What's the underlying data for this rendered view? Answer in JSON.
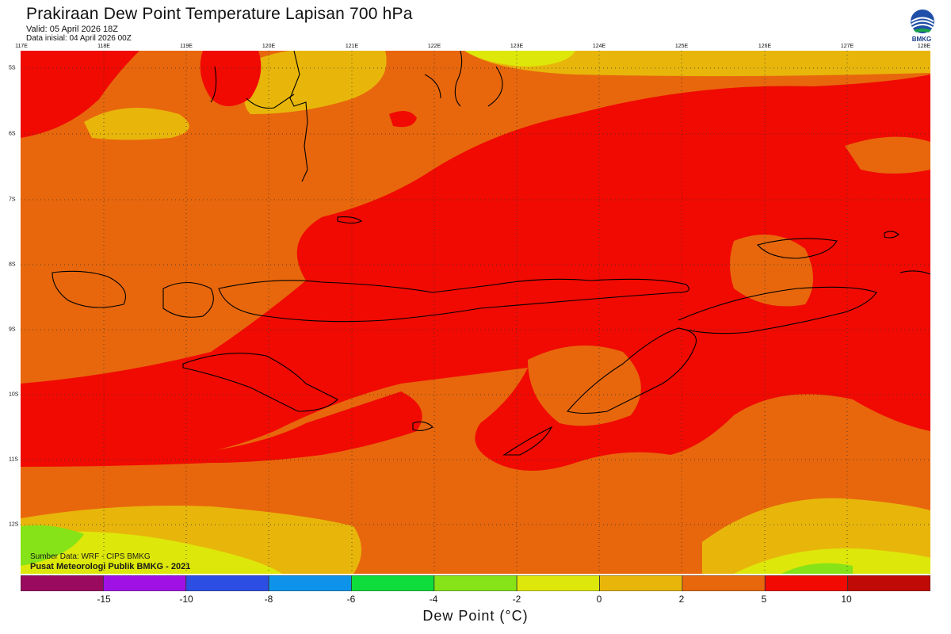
{
  "header": {
    "title": "Prakiraan Dew Point Temperature Lapisan 700 hPa",
    "valid": "Valid: 05 April 2026 18Z",
    "init": "Data inisial: 04 April 2026 00Z"
  },
  "logo": {
    "text": "BMKG",
    "icon": "bmkg-logo"
  },
  "map": {
    "lon_labels": [
      "117E",
      "118E",
      "119E",
      "120E",
      "121E",
      "122E",
      "123E",
      "124E",
      "125E",
      "126E",
      "127E",
      "128E"
    ],
    "lat_labels": [
      "5S",
      "6S",
      "7S",
      "8S",
      "9S",
      "10S",
      "11S",
      "12S"
    ],
    "lon_range": [
      117,
      128
    ],
    "lat_range": [
      -4.8,
      -12.8
    ],
    "grid": true
  },
  "footer": {
    "source": "Sumber Data: WRF - CIPS BMKG",
    "center": "Pusat Meteorologi Publik BMKG - 2021"
  },
  "colorbar": {
    "title": "Dew Point (°C)",
    "ticks": [
      "-15",
      "-10",
      "-8",
      "-6",
      "-4",
      "-2",
      "0",
      "2",
      "5",
      "10"
    ],
    "colors": [
      "#9a0a5e",
      "#a011e6",
      "#2c4ee3",
      "#0d93ea",
      "#0ddc3a",
      "#86e317",
      "#dde80a",
      "#e8b60b",
      "#e8670c",
      "#f00a02",
      "#c00a05"
    ]
  }
}
